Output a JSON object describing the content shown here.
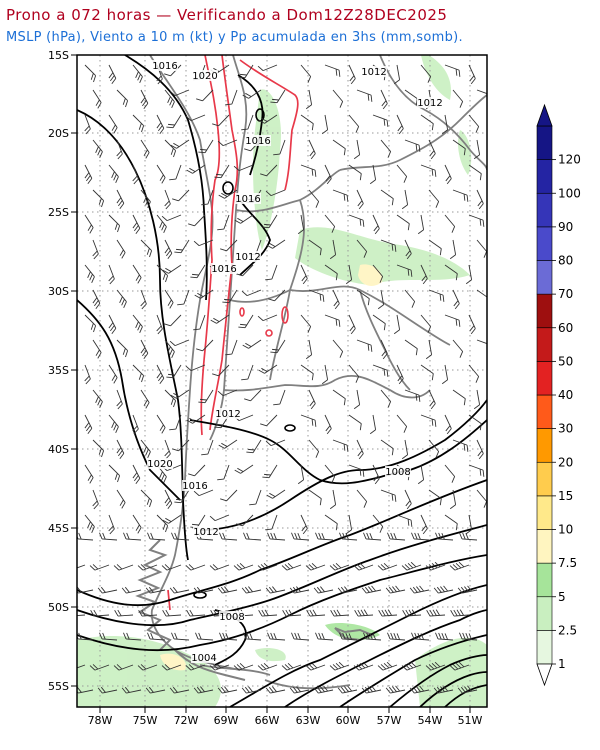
{
  "header": {
    "title": "Prono a 072 horas — Verificando a Dom12Z28DEC2025",
    "subtitle": "MSLP (hPa), Viento a 10 m (kt) y Pp acumulada en 3hs (mm,somb)."
  },
  "axes": {
    "lat_labels": [
      "15S",
      "20S",
      "25S",
      "30S",
      "35S",
      "40S",
      "45S",
      "50S",
      "55S"
    ],
    "lon_labels": [
      "78W",
      "75W",
      "72W",
      "69W",
      "66W",
      "63W",
      "60W",
      "57W",
      "54W",
      "51W"
    ]
  },
  "colorbar": {
    "levels": [
      "1",
      "2.5",
      "5",
      "7.5",
      "10",
      "15",
      "20",
      "30",
      "40",
      "50",
      "60",
      "70",
      "80",
      "90",
      "100",
      "120"
    ],
    "colors": [
      "#e6f7e0",
      "#c9efc0",
      "#a6e49a",
      "#fff5c0",
      "#ffe98a",
      "#ffcc4d",
      "#ff9900",
      "#ff5a1a",
      "#e32222",
      "#c41a1a",
      "#9e0f0f",
      "#6b6bd6",
      "#4a4acb",
      "#3535b8",
      "#2424a3",
      "#151585"
    ]
  },
  "isobars": [
    {
      "label": "1016"
    },
    {
      "label": "1020"
    },
    {
      "label": "1012"
    },
    {
      "label": "1012"
    },
    {
      "label": "1016"
    },
    {
      "label": "1016"
    },
    {
      "label": "1012"
    },
    {
      "label": "1016"
    },
    {
      "label": "1012"
    },
    {
      "label": "1020"
    },
    {
      "label": "1016"
    },
    {
      "label": "1012"
    },
    {
      "label": "1008"
    },
    {
      "label": "1008"
    },
    {
      "label": "1004"
    }
  ]
}
